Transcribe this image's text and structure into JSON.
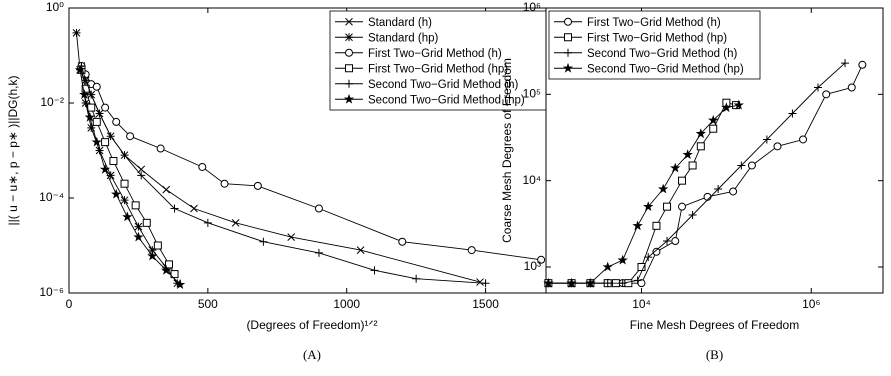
{
  "chart_data": [
    {
      "type": "line",
      "caption": "(A)",
      "xlabel": "(Degrees of Freedom)¹ᐟ²",
      "ylabel": "||( u − u∗, p − p∗ )||DG(h,k)",
      "xlim": [
        0,
        1750
      ],
      "xticks": [
        0,
        500,
        1000,
        1500
      ],
      "xscale": "linear",
      "ylim": [
        1e-06,
        1
      ],
      "yscale": "log",
      "yticks": [
        {
          "value": 1,
          "label": "10⁰"
        },
        {
          "value": 0.01,
          "label": "10⁻²"
        },
        {
          "value": 0.0001,
          "label": "10⁻⁴"
        },
        {
          "value": 1e-06,
          "label": "10⁻⁶"
        }
      ],
      "legend": "upper right",
      "series": [
        {
          "name": "Standard (h)",
          "color": "#000000",
          "marker": "x",
          "x": [
            45,
            60,
            80,
            110,
            150,
            200,
            260,
            350,
            450,
            600,
            800,
            1050,
            1480
          ],
          "values": [
            0.06,
            0.03,
            0.015,
            0.006,
            0.002,
            0.0008,
            0.0004,
            0.00015,
            6e-05,
            3e-05,
            1.5e-05,
            8e-06,
            1.7e-06
          ]
        },
        {
          "name": "Standard (hp)",
          "color": "#000000",
          "marker": "asterisk",
          "x": [
            27,
            40,
            60,
            80,
            110,
            150,
            200,
            250,
            300,
            350,
            390
          ],
          "values": [
            0.3,
            0.05,
            0.01,
            0.003,
            0.001,
            0.0003,
            9e-05,
            2.5e-05,
            8e-06,
            3.5e-06,
            1.6e-06
          ]
        },
        {
          "name": "First Two−Grid Method (h)",
          "color": "#000000",
          "marker": "circle",
          "x": [
            45,
            60,
            80,
            100,
            130,
            170,
            220,
            330,
            480,
            560,
            680,
            900,
            1200,
            1450,
            1700
          ],
          "values": [
            0.06,
            0.04,
            0.025,
            0.022,
            0.008,
            0.004,
            0.002,
            0.0011,
            0.00045,
            0.0002,
            0.00018,
            6e-05,
            1.2e-05,
            8e-06,
            5e-06
          ]
        },
        {
          "name": "First Two−Grid Method (hp)",
          "color": "#000000",
          "marker": "square",
          "x": [
            45,
            60,
            80,
            100,
            130,
            160,
            200,
            240,
            280,
            320,
            360,
            380
          ],
          "values": [
            0.05,
            0.02,
            0.008,
            0.004,
            0.0015,
            0.0006,
            0.0002,
            7e-05,
            3e-05,
            1e-05,
            4e-06,
            2.5e-06
          ]
        },
        {
          "name": "Second Two−Grid Method (h)",
          "color": "#000000",
          "marker": "plus",
          "x": [
            45,
            60,
            80,
            110,
            150,
            200,
            260,
            380,
            500,
            700,
            900,
            1100,
            1250,
            1500
          ],
          "values": [
            0.06,
            0.03,
            0.015,
            0.006,
            0.002,
            0.0008,
            0.0003,
            6e-05,
            3e-05,
            1.2e-05,
            7e-06,
            3e-06,
            2e-06,
            1.6e-06
          ]
        },
        {
          "name": "Second Two−Grid Method (hp)",
          "color": "#000000",
          "marker": "star",
          "x": [
            40,
            55,
            75,
            100,
            130,
            170,
            210,
            250,
            300,
            350,
            400
          ],
          "values": [
            0.05,
            0.015,
            0.005,
            0.0015,
            0.0004,
            0.00012,
            4e-05,
            1.5e-05,
            6e-06,
            3e-06,
            1.5e-06
          ]
        }
      ]
    },
    {
      "type": "line",
      "caption": "(B)",
      "xlabel": "Fine Mesh Degrees of Freedom",
      "ylabel": "Coarse Mesh Degrees of Freedom",
      "xlim": [
        750,
        7000000
      ],
      "xscale": "log",
      "xticks": [
        {
          "value": 10000,
          "label": "10⁴"
        },
        {
          "value": 1000000,
          "label": "10⁶"
        }
      ],
      "ylim": [
        500,
        1000000
      ],
      "yscale": "log",
      "yticks": [
        {
          "value": 1000,
          "label": "10³"
        },
        {
          "value": 10000,
          "label": "10⁴"
        },
        {
          "value": 100000,
          "label": "10⁵"
        },
        {
          "value": 1000000,
          "label": "10⁶"
        }
      ],
      "legend": "upper left",
      "series": [
        {
          "name": "First Two−Grid Method (h)",
          "color": "#000000",
          "marker": "circle",
          "x": [
            800,
            1500,
            2500,
            4000,
            6000,
            10000,
            15000,
            25000,
            30000,
            60000,
            120000,
            200000,
            400000,
            800000,
            1500000,
            3000000,
            4000000
          ],
          "values": [
            650,
            650,
            650,
            650,
            650,
            650,
            1500,
            2000,
            5000,
            6500,
            7500,
            15000,
            25000,
            30000,
            100000,
            120000,
            220000
          ]
        },
        {
          "name": "First Two−Grid Method (hp)",
          "color": "#000000",
          "marker": "square",
          "x": [
            800,
            1500,
            2500,
            4000,
            5000,
            7000,
            10000,
            15000,
            20000,
            30000,
            40000,
            50000,
            70000,
            100000,
            130000
          ],
          "values": [
            650,
            650,
            650,
            650,
            650,
            650,
            1000,
            3000,
            5000,
            10000,
            15000,
            25000,
            40000,
            80000,
            75000
          ]
        },
        {
          "name": "Second Two−Grid Method (h)",
          "color": "#000000",
          "marker": "plus",
          "x": [
            800,
            1500,
            2500,
            4000,
            6000,
            9000,
            12000,
            20000,
            40000,
            80000,
            150000,
            300000,
            600000,
            1200000,
            2500000
          ],
          "values": [
            650,
            650,
            650,
            650,
            650,
            700,
            1300,
            2000,
            4000,
            8000,
            15000,
            30000,
            60000,
            120000,
            230000
          ]
        },
        {
          "name": "Second Two−Grid Method (hp)",
          "color": "#000000",
          "marker": "star",
          "x": [
            800,
            1500,
            2500,
            4000,
            6000,
            9000,
            12000,
            18000,
            25000,
            35000,
            50000,
            70000,
            100000,
            140000
          ],
          "values": [
            650,
            650,
            650,
            1000,
            1200,
            3000,
            5000,
            8000,
            14000,
            20000,
            35000,
            50000,
            70000,
            75000
          ]
        }
      ]
    }
  ]
}
